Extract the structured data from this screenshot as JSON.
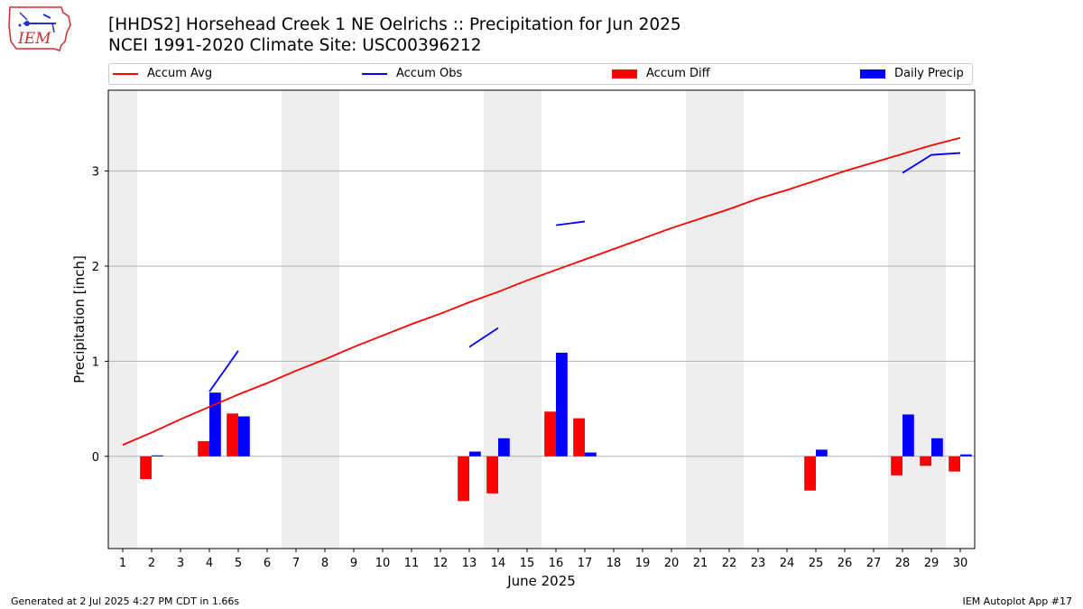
{
  "header": {
    "title_line1": "[HHDS2] Horsehead Creek 1 NE Oelrichs :: Precipitation for Jun 2025",
    "title_line2": "NCEI 1991-2020 Climate Site: USC00396212"
  },
  "logo": {
    "text": "IEM",
    "color": "#d42d2d"
  },
  "footer": {
    "left": "Generated at 2 Jul 2025 4:27 PM CDT in 1.66s",
    "right": "IEM Autoplot App #17"
  },
  "legend": [
    {
      "label": "Accum Avg",
      "color": "#ff0000",
      "kind": "line"
    },
    {
      "label": "Accum Obs",
      "color": "#0000ff",
      "kind": "line"
    },
    {
      "label": "Accum Diff",
      "color": "#ff0000",
      "kind": "bar"
    },
    {
      "label": "Daily Precip",
      "color": "#0000ff",
      "kind": "bar"
    }
  ],
  "chart_data": {
    "type": "bar",
    "xlabel": "June 2025",
    "ylabel": "Precipitation [inch]",
    "xlim": [
      0.5,
      30.5
    ],
    "ylim": [
      -0.97,
      3.85
    ],
    "yticks": [
      0,
      1,
      2,
      3
    ],
    "grid": "horizontal",
    "legend_position": "top",
    "days": [
      1,
      2,
      3,
      4,
      5,
      6,
      7,
      8,
      9,
      10,
      11,
      12,
      13,
      14,
      15,
      16,
      17,
      18,
      19,
      20,
      21,
      22,
      23,
      24,
      25,
      26,
      27,
      28,
      29,
      30
    ],
    "weekend_days": [
      1,
      7,
      8,
      14,
      15,
      21,
      22,
      28,
      29
    ],
    "series": [
      {
        "name": "Accum Avg",
        "kind": "line",
        "color": "#ff0000",
        "values": [
          0.12,
          0.25,
          0.39,
          0.52,
          0.65,
          0.77,
          0.9,
          1.02,
          1.15,
          1.27,
          1.39,
          1.5,
          1.62,
          1.73,
          1.85,
          1.96,
          2.07,
          2.18,
          2.29,
          2.4,
          2.5,
          2.6,
          2.71,
          2.8,
          2.9,
          3.0,
          3.09,
          3.18,
          3.27,
          3.35
        ]
      },
      {
        "name": "Accum Obs",
        "kind": "line",
        "color": "#0000ff",
        "segments": [
          {
            "x": [
              4,
              5
            ],
            "y": [
              0.68,
              1.11
            ]
          },
          {
            "x": [
              13,
              14
            ],
            "y": [
              1.15,
              1.35
            ]
          },
          {
            "x": [
              16,
              17
            ],
            "y": [
              2.43,
              2.47
            ]
          },
          {
            "x": [
              28,
              29,
              30
            ],
            "y": [
              2.98,
              3.17,
              3.19
            ]
          }
        ]
      },
      {
        "name": "Accum Diff",
        "kind": "bar",
        "color": "#ff0000",
        "points": [
          {
            "day": 2,
            "value": -0.24
          },
          {
            "day": 4,
            "value": 0.16
          },
          {
            "day": 5,
            "value": 0.45
          },
          {
            "day": 13,
            "value": -0.47
          },
          {
            "day": 14,
            "value": -0.39
          },
          {
            "day": 16,
            "value": 0.47
          },
          {
            "day": 17,
            "value": 0.4
          },
          {
            "day": 25,
            "value": -0.36
          },
          {
            "day": 28,
            "value": -0.2
          },
          {
            "day": 29,
            "value": -0.1
          },
          {
            "day": 30,
            "value": -0.16
          }
        ]
      },
      {
        "name": "Daily Precip",
        "kind": "bar",
        "color": "#0000ff",
        "points": [
          {
            "day": 2,
            "value": 0.01
          },
          {
            "day": 4,
            "value": 0.67
          },
          {
            "day": 5,
            "value": 0.42
          },
          {
            "day": 13,
            "value": 0.05
          },
          {
            "day": 14,
            "value": 0.19
          },
          {
            "day": 16,
            "value": 1.09
          },
          {
            "day": 17,
            "value": 0.04
          },
          {
            "day": 25,
            "value": 0.07
          },
          {
            "day": 28,
            "value": 0.44
          },
          {
            "day": 29,
            "value": 0.19
          },
          {
            "day": 30,
            "value": 0.02
          }
        ]
      }
    ]
  }
}
